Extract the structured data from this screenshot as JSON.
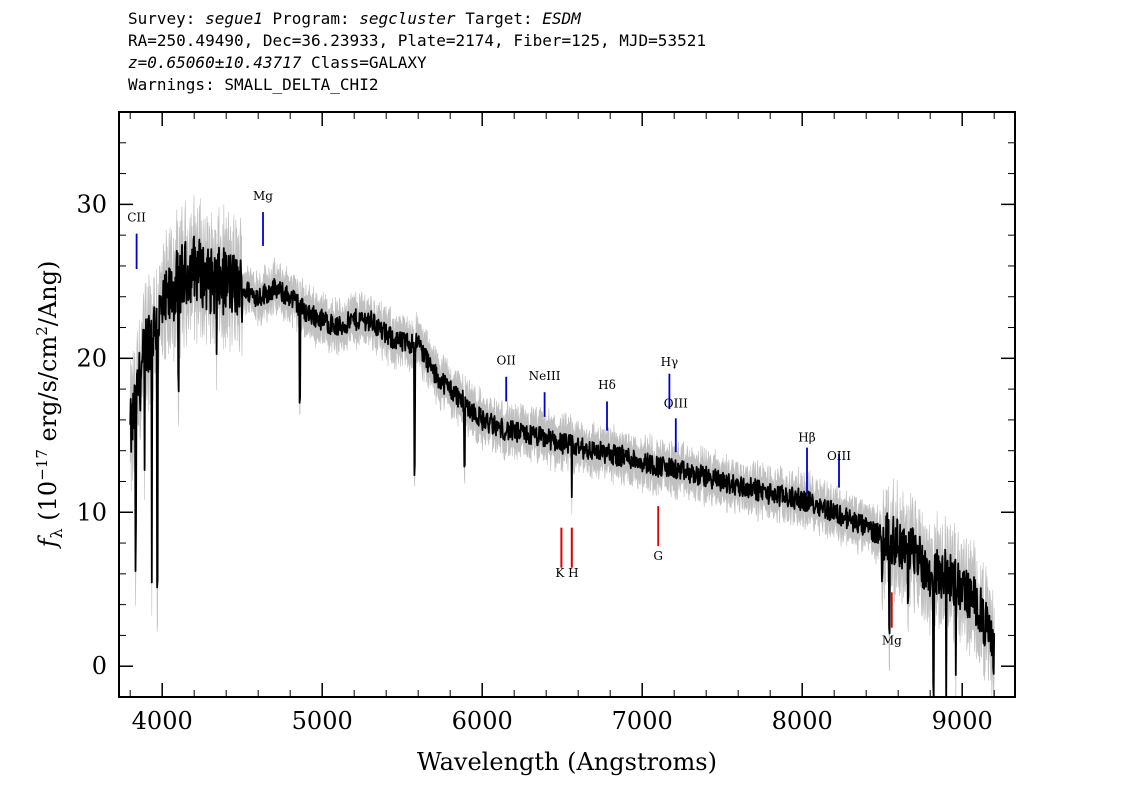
{
  "header": {
    "line1": {
      "survey_label": "Survey:",
      "survey": "segue1",
      "program_label": "Program:",
      "program": "segcluster",
      "target_label": "Target:",
      "target": "ESDM"
    },
    "line2": "RA=250.49490, Dec=36.23933, Plate=2174, Fiber=125, MJD=53521",
    "line3": {
      "z": "z=0.65060±10.43717",
      "class": "Class=GALAXY"
    },
    "line4": "Warnings: SMALL_DELTA_CHI2"
  },
  "colors": {
    "flux": "#000000",
    "error": "#c0c0c0",
    "emission": "#0000cc",
    "absorption": "#dd0000"
  },
  "chart_data": {
    "type": "line",
    "xlabel": "Wavelength (Angstroms)",
    "ylabel": "f_λ (10^-17 erg/s/cm^2/Ang)",
    "xlim": [
      3730,
      9330
    ],
    "ylim": [
      -2,
      36
    ],
    "x_ticks": [
      4000,
      5000,
      6000,
      7000,
      8000,
      9000
    ],
    "y_ticks": [
      0,
      10,
      20,
      30
    ],
    "series": [
      {
        "values_x": [
          3800,
          3900,
          4000,
          4100,
          4200,
          4300,
          4400,
          4500,
          4600,
          4700,
          4800,
          4900,
          5000,
          5100,
          5200,
          5300,
          5400,
          5500,
          5600,
          5700,
          5800,
          5900,
          6000,
          6100,
          6200,
          6300,
          6400,
          6500,
          6600,
          6700,
          6800,
          6900,
          7000,
          7100,
          7200,
          7300,
          7400,
          7500,
          7600,
          7700,
          7800,
          7900,
          8000,
          8100,
          8200,
          8300,
          8400,
          8500,
          8600,
          8700,
          8800,
          8900,
          9000,
          9100,
          9200
        ],
        "values_y": [
          15,
          21,
          23,
          25,
          26,
          25,
          25,
          24.5,
          24,
          24.5,
          24,
          23,
          22.5,
          22,
          22.5,
          22.5,
          21.5,
          21,
          21,
          19,
          18,
          17,
          16,
          15.5,
          15.2,
          15,
          14.8,
          14.5,
          14.2,
          14,
          13.8,
          13.6,
          13.3,
          13,
          12.8,
          12.5,
          12.3,
          12,
          11.7,
          11.5,
          11.2,
          11,
          10.8,
          10.5,
          10,
          9.5,
          9,
          8.5,
          8,
          7.5,
          6,
          6,
          5,
          4,
          1
        ]
      }
    ],
    "lines": [
      {
        "label": "CII",
        "x": 3840,
        "label_y": 28.9,
        "y1": 28.1,
        "y2": 25.8,
        "kind": "emission"
      },
      {
        "label": "Mg",
        "x": 4630,
        "label_y": 30.3,
        "y1": 29.5,
        "y2": 27.3,
        "kind": "emission"
      },
      {
        "label": "OII",
        "x": 6150,
        "label_y": 19.6,
        "y1": 18.8,
        "y2": 17.2,
        "kind": "emission"
      },
      {
        "label": "NeIII",
        "x": 6390,
        "label_y": 18.6,
        "y1": 17.8,
        "y2": 16.2,
        "kind": "emission"
      },
      {
        "label": "Hδ",
        "x": 6780,
        "label_y": 18.0,
        "y1": 17.2,
        "y2": 15.3,
        "kind": "emission"
      },
      {
        "label": "Hγ",
        "x": 7170,
        "label_y": 19.5,
        "y1": 19.0,
        "y2": 16.7,
        "kind": "emission"
      },
      {
        "label": "OIII",
        "x": 7210,
        "label_y": 16.8,
        "y1": 16.1,
        "y2": 13.9,
        "kind": "emission"
      },
      {
        "label": "Hβ",
        "x": 8030,
        "label_y": 14.6,
        "y1": 14.2,
        "y2": 11.2,
        "kind": "emission"
      },
      {
        "label": "OIII",
        "x": 8230,
        "label_y": 13.4,
        "y1": 13.8,
        "y2": 11.6,
        "kind": "emission"
      },
      {
        "label": "K H",
        "x": 6530,
        "label_y": 5.8,
        "y1": 9.0,
        "y2": 6.4,
        "kind": "absorption"
      },
      {
        "label": "G",
        "x": 7100,
        "label_y": 6.9,
        "y1": 10.4,
        "y2": 7.8,
        "kind": "absorption"
      },
      {
        "label": "Mg",
        "x": 8560,
        "label_y": 1.4,
        "y1": 4.8,
        "y2": 2.5,
        "kind": "absorption"
      }
    ]
  }
}
